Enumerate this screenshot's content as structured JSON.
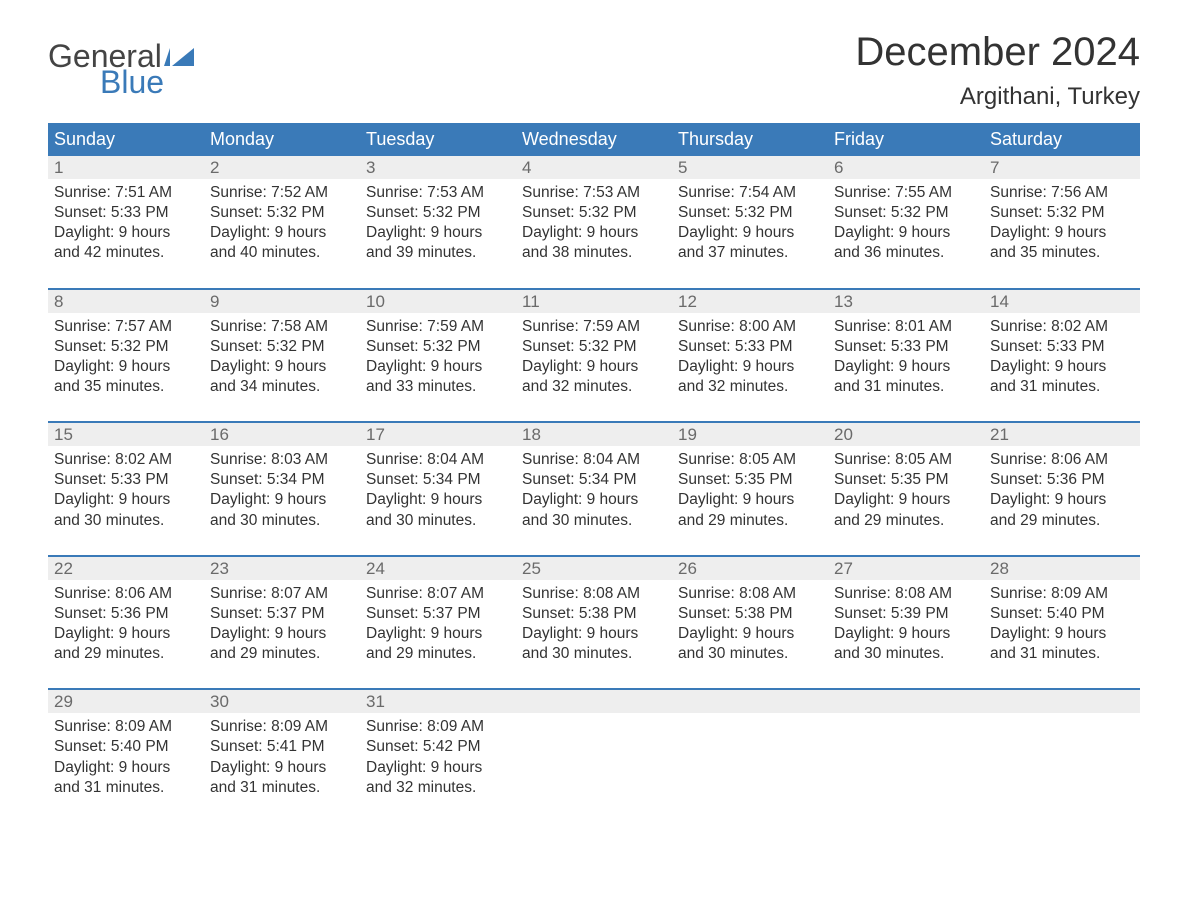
{
  "logo": {
    "text1": "General",
    "text2": "Blue",
    "icon_color": "#3a7ab8",
    "text1_color": "#444444"
  },
  "title": "December 2024",
  "location": "Argithani, Turkey",
  "colors": {
    "header_bg": "#3a7ab8",
    "header_text": "#ffffff",
    "daynum_bg": "#eeeeee",
    "daynum_text": "#6a6a6a",
    "body_text": "#333333",
    "week_divider": "#3a7ab8",
    "page_bg": "#ffffff"
  },
  "day_headers": [
    "Sunday",
    "Monday",
    "Tuesday",
    "Wednesday",
    "Thursday",
    "Friday",
    "Saturday"
  ],
  "weeks": [
    [
      {
        "n": "1",
        "sunrise": "Sunrise: 7:51 AM",
        "sunset": "Sunset: 5:33 PM",
        "day1": "Daylight: 9 hours",
        "day2": "and 42 minutes."
      },
      {
        "n": "2",
        "sunrise": "Sunrise: 7:52 AM",
        "sunset": "Sunset: 5:32 PM",
        "day1": "Daylight: 9 hours",
        "day2": "and 40 minutes."
      },
      {
        "n": "3",
        "sunrise": "Sunrise: 7:53 AM",
        "sunset": "Sunset: 5:32 PM",
        "day1": "Daylight: 9 hours",
        "day2": "and 39 minutes."
      },
      {
        "n": "4",
        "sunrise": "Sunrise: 7:53 AM",
        "sunset": "Sunset: 5:32 PM",
        "day1": "Daylight: 9 hours",
        "day2": "and 38 minutes."
      },
      {
        "n": "5",
        "sunrise": "Sunrise: 7:54 AM",
        "sunset": "Sunset: 5:32 PM",
        "day1": "Daylight: 9 hours",
        "day2": "and 37 minutes."
      },
      {
        "n": "6",
        "sunrise": "Sunrise: 7:55 AM",
        "sunset": "Sunset: 5:32 PM",
        "day1": "Daylight: 9 hours",
        "day2": "and 36 minutes."
      },
      {
        "n": "7",
        "sunrise": "Sunrise: 7:56 AM",
        "sunset": "Sunset: 5:32 PM",
        "day1": "Daylight: 9 hours",
        "day2": "and 35 minutes."
      }
    ],
    [
      {
        "n": "8",
        "sunrise": "Sunrise: 7:57 AM",
        "sunset": "Sunset: 5:32 PM",
        "day1": "Daylight: 9 hours",
        "day2": "and 35 minutes."
      },
      {
        "n": "9",
        "sunrise": "Sunrise: 7:58 AM",
        "sunset": "Sunset: 5:32 PM",
        "day1": "Daylight: 9 hours",
        "day2": "and 34 minutes."
      },
      {
        "n": "10",
        "sunrise": "Sunrise: 7:59 AM",
        "sunset": "Sunset: 5:32 PM",
        "day1": "Daylight: 9 hours",
        "day2": "and 33 minutes."
      },
      {
        "n": "11",
        "sunrise": "Sunrise: 7:59 AM",
        "sunset": "Sunset: 5:32 PM",
        "day1": "Daylight: 9 hours",
        "day2": "and 32 minutes."
      },
      {
        "n": "12",
        "sunrise": "Sunrise: 8:00 AM",
        "sunset": "Sunset: 5:33 PM",
        "day1": "Daylight: 9 hours",
        "day2": "and 32 minutes."
      },
      {
        "n": "13",
        "sunrise": "Sunrise: 8:01 AM",
        "sunset": "Sunset: 5:33 PM",
        "day1": "Daylight: 9 hours",
        "day2": "and 31 minutes."
      },
      {
        "n": "14",
        "sunrise": "Sunrise: 8:02 AM",
        "sunset": "Sunset: 5:33 PM",
        "day1": "Daylight: 9 hours",
        "day2": "and 31 minutes."
      }
    ],
    [
      {
        "n": "15",
        "sunrise": "Sunrise: 8:02 AM",
        "sunset": "Sunset: 5:33 PM",
        "day1": "Daylight: 9 hours",
        "day2": "and 30 minutes."
      },
      {
        "n": "16",
        "sunrise": "Sunrise: 8:03 AM",
        "sunset": "Sunset: 5:34 PM",
        "day1": "Daylight: 9 hours",
        "day2": "and 30 minutes."
      },
      {
        "n": "17",
        "sunrise": "Sunrise: 8:04 AM",
        "sunset": "Sunset: 5:34 PM",
        "day1": "Daylight: 9 hours",
        "day2": "and 30 minutes."
      },
      {
        "n": "18",
        "sunrise": "Sunrise: 8:04 AM",
        "sunset": "Sunset: 5:34 PM",
        "day1": "Daylight: 9 hours",
        "day2": "and 30 minutes."
      },
      {
        "n": "19",
        "sunrise": "Sunrise: 8:05 AM",
        "sunset": "Sunset: 5:35 PM",
        "day1": "Daylight: 9 hours",
        "day2": "and 29 minutes."
      },
      {
        "n": "20",
        "sunrise": "Sunrise: 8:05 AM",
        "sunset": "Sunset: 5:35 PM",
        "day1": "Daylight: 9 hours",
        "day2": "and 29 minutes."
      },
      {
        "n": "21",
        "sunrise": "Sunrise: 8:06 AM",
        "sunset": "Sunset: 5:36 PM",
        "day1": "Daylight: 9 hours",
        "day2": "and 29 minutes."
      }
    ],
    [
      {
        "n": "22",
        "sunrise": "Sunrise: 8:06 AM",
        "sunset": "Sunset: 5:36 PM",
        "day1": "Daylight: 9 hours",
        "day2": "and 29 minutes."
      },
      {
        "n": "23",
        "sunrise": "Sunrise: 8:07 AM",
        "sunset": "Sunset: 5:37 PM",
        "day1": "Daylight: 9 hours",
        "day2": "and 29 minutes."
      },
      {
        "n": "24",
        "sunrise": "Sunrise: 8:07 AM",
        "sunset": "Sunset: 5:37 PM",
        "day1": "Daylight: 9 hours",
        "day2": "and 29 minutes."
      },
      {
        "n": "25",
        "sunrise": "Sunrise: 8:08 AM",
        "sunset": "Sunset: 5:38 PM",
        "day1": "Daylight: 9 hours",
        "day2": "and 30 minutes."
      },
      {
        "n": "26",
        "sunrise": "Sunrise: 8:08 AM",
        "sunset": "Sunset: 5:38 PM",
        "day1": "Daylight: 9 hours",
        "day2": "and 30 minutes."
      },
      {
        "n": "27",
        "sunrise": "Sunrise: 8:08 AM",
        "sunset": "Sunset: 5:39 PM",
        "day1": "Daylight: 9 hours",
        "day2": "and 30 minutes."
      },
      {
        "n": "28",
        "sunrise": "Sunrise: 8:09 AM",
        "sunset": "Sunset: 5:40 PM",
        "day1": "Daylight: 9 hours",
        "day2": "and 31 minutes."
      }
    ],
    [
      {
        "n": "29",
        "sunrise": "Sunrise: 8:09 AM",
        "sunset": "Sunset: 5:40 PM",
        "day1": "Daylight: 9 hours",
        "day2": "and 31 minutes."
      },
      {
        "n": "30",
        "sunrise": "Sunrise: 8:09 AM",
        "sunset": "Sunset: 5:41 PM",
        "day1": "Daylight: 9 hours",
        "day2": "and 31 minutes."
      },
      {
        "n": "31",
        "sunrise": "Sunrise: 8:09 AM",
        "sunset": "Sunset: 5:42 PM",
        "day1": "Daylight: 9 hours",
        "day2": "and 32 minutes."
      },
      null,
      null,
      null,
      null
    ]
  ]
}
